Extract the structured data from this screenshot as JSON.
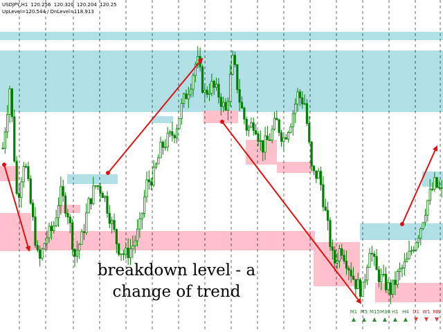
{
  "window": {
    "symbol": "USDJPY,H1",
    "prices": [
      "120.256",
      "120.320",
      "120.204",
      "120.25"
    ],
    "levels_text": "UpLevel=120.544 / DnLevel=118.913"
  },
  "annotation": {
    "line1": "breakdown level - a",
    "line2": "change of trend"
  },
  "colors": {
    "resistance_zone": "#b0e0e6",
    "support_zone": "#ffc0cb",
    "trend_arrow": "#e01010",
    "candle": "#008000",
    "grid": "#000000"
  },
  "timeframes": [
    {
      "label": "M1",
      "direction": "up"
    },
    {
      "label": "M5",
      "direction": "up"
    },
    {
      "label": "M15",
      "direction": "up"
    },
    {
      "label": "M30",
      "direction": "up"
    },
    {
      "label": "H1",
      "direction": "up"
    },
    {
      "label": "H4",
      "direction": "up"
    },
    {
      "label": "D1",
      "direction": "down"
    },
    {
      "label": "W1",
      "direction": "down"
    },
    {
      "label": "MN",
      "direction": "down"
    }
  ],
  "chart_data": {
    "type": "candlestick",
    "y_range": [
      118.0,
      121.4
    ],
    "resistance_zones": [
      {
        "from": 120.3,
        "to": 121.1
      },
      {
        "from": 119.95,
        "to": 120.3
      },
      {
        "from": 121.2,
        "to": 121.3
      }
    ],
    "support_zones": [
      {
        "from": 118.45,
        "to": 118.7
      },
      {
        "from": 118.8,
        "to": 119.0
      }
    ],
    "close_path": [
      119.9,
      120.6,
      119.3,
      119.8,
      119.2,
      118.6,
      118.9,
      119.0,
      119.4,
      119.2,
      118.7,
      118.9,
      119.3,
      119.5,
      119.4,
      119.1,
      118.8,
      118.7,
      118.8,
      119.0,
      119.5,
      119.6,
      119.9,
      120.0,
      120.1,
      120.4,
      120.6,
      120.9,
      120.5,
      120.6,
      120.5,
      120.3,
      120.9,
      120.4,
      120.1,
      120.2,
      119.9,
      120.0,
      120.2,
      120.0,
      120.2,
      120.5,
      120.4,
      119.6,
      119.6,
      119.1,
      118.6,
      118.8,
      118.6,
      118.4,
      118.3,
      118.8,
      118.5,
      118.4,
      118.3,
      118.5,
      118.6,
      118.8,
      119.0,
      119.3,
      119.5,
      119.4
    ]
  }
}
